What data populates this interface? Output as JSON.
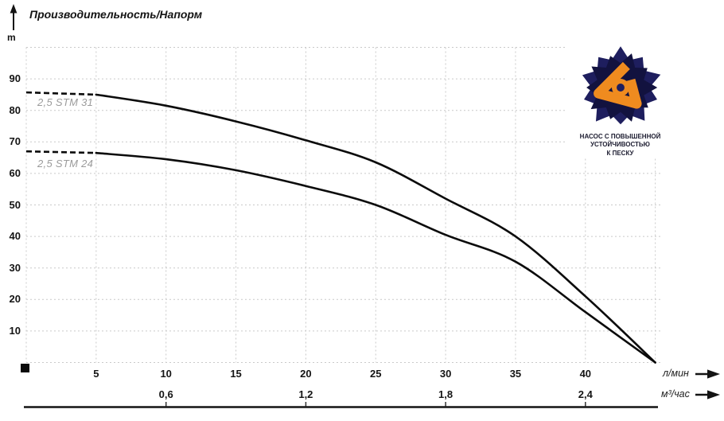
{
  "title": "Производительность/Напорм",
  "y_unit": "m",
  "badge": {
    "caption_lines": [
      "НАСОС С ПОВЫШЕННОЙ",
      "УСТОЙЧИВОСТЬЮ",
      "К ПЕСКУ"
    ],
    "navy": "#1e1e5e",
    "navy_dark": "#12123f",
    "orange": "#ef8b1f"
  },
  "chart_data": {
    "type": "line",
    "title": "Производительность/Напорм",
    "ylabel": "m",
    "xlabel_primary": "л/мин",
    "xlabel_secondary": "м³/час",
    "x": [
      0,
      5,
      10,
      15,
      20,
      25,
      30,
      35,
      40,
      45
    ],
    "series": [
      {
        "name": "2,5 STM 31",
        "values": [
          85.7,
          85,
          81.5,
          76.5,
          70.5,
          63.5,
          52,
          40,
          21,
          0
        ]
      },
      {
        "name": "2,5 STM 24",
        "values": [
          67,
          66.5,
          64.5,
          61,
          56,
          50,
          40.5,
          32,
          16,
          0
        ]
      }
    ],
    "series_line_color": "#0b0b0b",
    "dashed_until_flow": 5,
    "xlim": [
      0,
      45.2
    ],
    "ylim": [
      0,
      100
    ],
    "grid": "dotted",
    "grid_color": "#c9c9c9",
    "y_ticks": [
      10,
      20,
      30,
      40,
      50,
      60,
      70,
      80,
      90
    ],
    "x_ticks_primary": [
      5,
      10,
      15,
      20,
      25,
      30,
      35,
      40
    ],
    "x_ticks_secondary": [
      {
        "flow": 10,
        "label": "0,6"
      },
      {
        "flow": 20,
        "label": "1,2"
      },
      {
        "flow": 30,
        "label": "1,8"
      },
      {
        "flow": 40,
        "label": "2,4"
      }
    ],
    "legend_position": "curve-start-labels"
  }
}
